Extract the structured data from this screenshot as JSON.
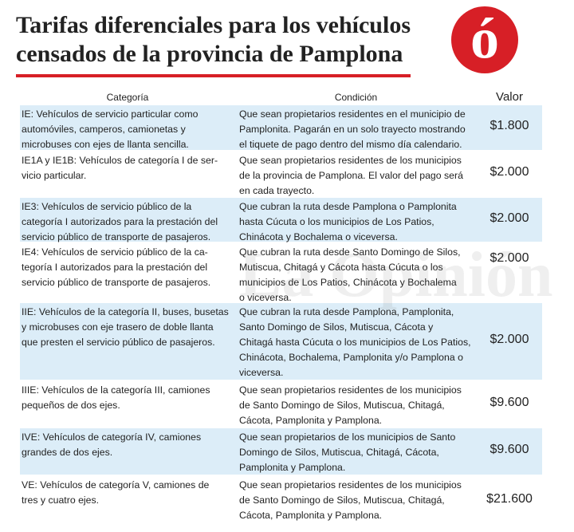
{
  "header": {
    "title": [
      "Tarifas diferenciales para los vehículos",
      "censados de la provincia de Pamplona"
    ],
    "logo": "ó",
    "watermark": "La Opinión"
  },
  "table": {
    "columns": [
      "Categoría",
      "Condición",
      "Valor"
    ],
    "rows": [
      [
        [
          "IE:  Vehículos de servicio particular como",
          "automóviles, camperos, camionetas y",
          "microbuses con ejes de llanta sencilla."
        ],
        [
          "Que sean propietarios residentes en el municipio de",
          "Pamplonita. Pagarán en un solo trayecto mostrando",
          "el tiquete de pago dentro del mismo día calendario."
        ],
        "$1.800"
      ],
      [
        [
          "IE1A y IE1B: Vehículos de categoría I de ser-",
          "vicio particular."
        ],
        [
          "Que sean propietarios residentes de los municipios",
          "de la provincia de Pamplona. El valor del pago será",
          "en cada trayecto."
        ],
        "$2.000"
      ],
      [
        [
          "IE3: Vehículos de servicio público de la",
          "categoría I autorizados para la prestación del",
          "servicio público de transporte de pasajeros."
        ],
        [
          "Que cubran la ruta desde Pamplona o Pamplonita",
          "hasta Cúcuta o los municipios de Los Patios,",
          "Chinácota y Bochalema o viceversa."
        ],
        "$2.000"
      ],
      [
        [
          "IE4: Vehículos de servicio público de la ca-",
          "tegoría I autorizados para la prestación del",
          "servicio público de transporte de pasajeros."
        ],
        [
          "Que cubran la ruta desde Santo Domingo de Silos,",
          "Mutiscua, Chitagá y Cácota hasta Cúcuta o los",
          "municipios de Los Patios, Chinácota y Bochalema",
          "o viceversa."
        ],
        "$2.000"
      ],
      [
        [
          "IIE: Vehículos de la categoría II, buses, busetas",
          "y microbuses con eje trasero de doble llanta",
          "que presten el servicio público de pasajeros."
        ],
        [
          "Que cubran la ruta desde Pamplona, Pamplonita,",
          "Santo Domingo de Silos, Mutiscua, Cácota y",
          "Chitagá hasta Cúcuta o los municipios de Los Patios,",
          "Chinácota, Bochalema, Pamplonita y/o Pamplona o",
          "viceversa."
        ],
        "$2.000"
      ],
      [
        [
          "IIIE: Vehículos de la categoría III, camiones",
          "pequeños de dos ejes."
        ],
        [
          "Que sean propietarios residentes de los municipios",
          "de Santo Domingo de Silos, Mutiscua, Chitagá,",
          "Cácota, Pamplonita y Pamplona."
        ],
        "$9.600"
      ],
      [
        [
          "IVE: Vehículos de categoría IV, camiones",
          "grandes de dos ejes."
        ],
        [
          "Que sean propietarios de los municipios de Santo",
          "Domingo de Silos, Mutiscua, Chitagá, Cácota,",
          "Pamplonita y Pamplona."
        ],
        "$9.600"
      ],
      [
        [
          "VE: Vehículos de categoría V, camiones de",
          "tres y cuatro ejes."
        ],
        [
          "Que sean propietarios residentes de los municipios",
          "de Santo Domingo de Silos, Mutiscua, Chitagá,",
          "Cácota, Pamplonita y Pamplona."
        ],
        "$21.600"
      ]
    ]
  }
}
